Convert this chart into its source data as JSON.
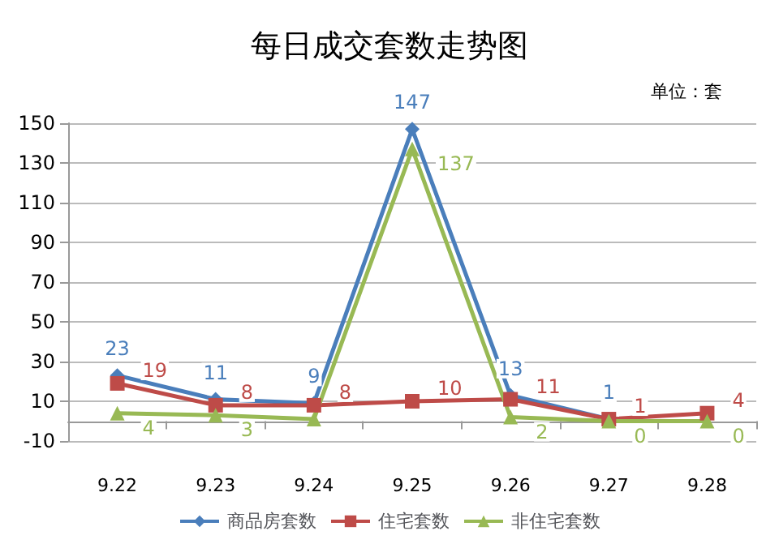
{
  "chart_data": {
    "type": "line",
    "title": "每日成交套数走势图",
    "annotations": [
      "单位：套"
    ],
    "categories": [
      "9.22",
      "9.23",
      "9.24",
      "9.25",
      "9.26",
      "9.27",
      "9.28"
    ],
    "series": [
      {
        "name": "商品房套数",
        "color": "#4a7ebb",
        "marker": "diamond",
        "values": [
          23,
          11,
          9,
          147,
          13,
          1,
          null
        ],
        "value_labels": [
          "23",
          "11",
          "9",
          "147",
          "13",
          "1",
          null
        ]
      },
      {
        "name": "住宅套数",
        "color": "#be4b48",
        "marker": "square",
        "values": [
          19,
          8,
          8,
          10,
          11,
          1,
          4
        ],
        "value_labels": [
          "19",
          "8",
          "8",
          "10",
          "11",
          "1",
          "4"
        ]
      },
      {
        "name": "非住宅套数",
        "color": "#98b954",
        "marker": "triangle",
        "values": [
          4,
          3,
          1,
          137,
          2,
          0,
          0
        ],
        "value_labels": [
          "4",
          "3",
          null,
          "137",
          "2",
          "0",
          "0"
        ]
      }
    ],
    "ylim": [
      -10,
      150
    ],
    "yticks": [
      -10,
      10,
      30,
      50,
      70,
      90,
      110,
      130,
      150
    ],
    "grid": "y",
    "legend": "bottom"
  }
}
